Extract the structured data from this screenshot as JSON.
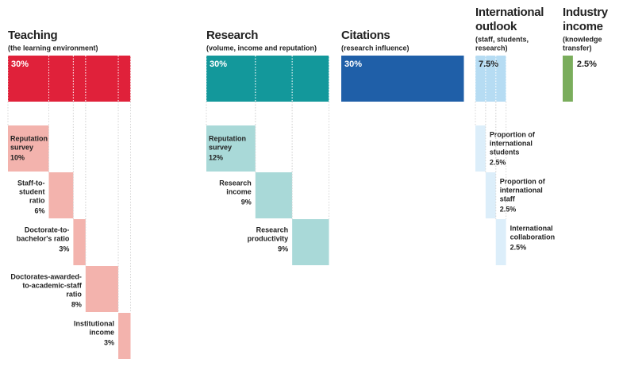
{
  "pillars": [
    {
      "title": [
        "Teaching"
      ],
      "subtitle": [
        "(the learning environment)"
      ],
      "weight": {
        "value": 30,
        "label": "30%"
      },
      "parts": [
        {
          "label": [
            "Reputation",
            "survey"
          ],
          "weight": {
            "value": 10,
            "label": "10%"
          }
        },
        {
          "label": [
            "Staff-to-",
            "student",
            "ratio"
          ],
          "weight": {
            "value": 6,
            "label": "6%"
          }
        },
        {
          "label": [
            "Doctorate-to-",
            "bachelor's ratio"
          ],
          "weight": {
            "value": 3,
            "label": "3%"
          }
        },
        {
          "label": [
            "Doctorates-awarded-",
            "to-academic-staff",
            "ratio"
          ],
          "weight": {
            "value": 8,
            "label": "8%"
          }
        },
        {
          "label": [
            "Institutional",
            "income"
          ],
          "weight": {
            "value": 3,
            "label": "3%"
          }
        }
      ]
    },
    {
      "title": [
        "Research"
      ],
      "subtitle": [
        "(volume, income and reputation)"
      ],
      "weight": {
        "value": 30,
        "label": "30%"
      },
      "parts": [
        {
          "label": [
            "Reputation",
            "survey"
          ],
          "weight": {
            "value": 12,
            "label": "12%"
          }
        },
        {
          "label": [
            "Research",
            "income"
          ],
          "weight": {
            "value": 9,
            "label": "9%"
          }
        },
        {
          "label": [
            "Research",
            "productivity"
          ],
          "weight": {
            "value": 9,
            "label": "9%"
          }
        }
      ]
    },
    {
      "title": [
        "Citations"
      ],
      "subtitle": [
        "(research influence)"
      ],
      "weight": {
        "value": 30,
        "label": "30%"
      },
      "parts": []
    },
    {
      "title": [
        "International",
        "outlook"
      ],
      "subtitle": [
        "(staff, students,",
        "research)"
      ],
      "weight": {
        "value": 7.5,
        "label": "7.5%"
      },
      "parts": [
        {
          "label": [
            "Proportion of",
            "international",
            "students"
          ],
          "weight": {
            "value": 2.5,
            "label": "2.5%"
          }
        },
        {
          "label": [
            "Proportion of",
            "international",
            "staff"
          ],
          "weight": {
            "value": 2.5,
            "label": "2.5%"
          }
        },
        {
          "label": [
            "International",
            "collaboration"
          ],
          "weight": {
            "value": 2.5,
            "label": "2.5%"
          }
        }
      ]
    },
    {
      "title": [
        "Industry",
        "income"
      ],
      "subtitle": [
        "(knowledge",
        "transfer)"
      ],
      "weight": {
        "value": 2.5,
        "label": "2.5%"
      },
      "parts": []
    }
  ]
}
